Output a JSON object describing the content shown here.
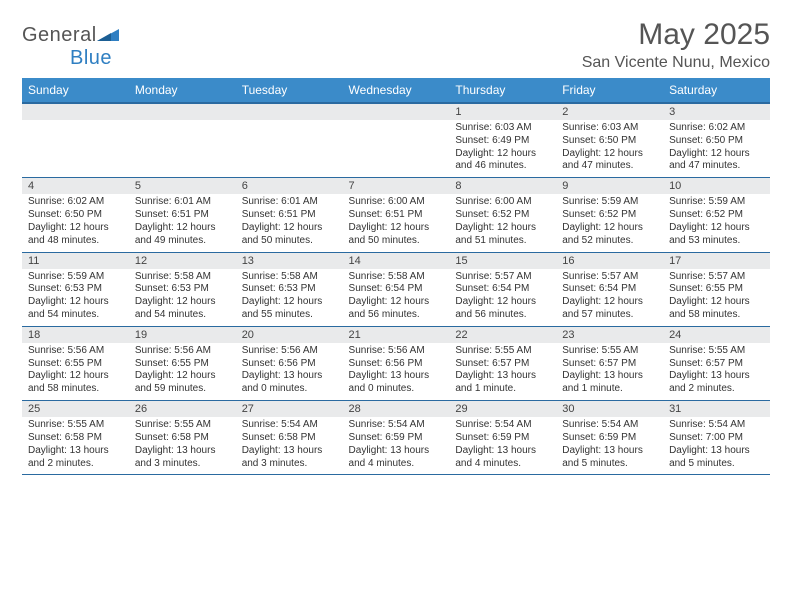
{
  "logo": {
    "text1": "General",
    "text2": "Blue"
  },
  "title": "May 2025",
  "location": "San Vicente Nunu, Mexico",
  "colors": {
    "header_bg": "#3b8bc9",
    "header_text": "#ffffff",
    "rule": "#2a6aa0",
    "daynum_bg": "#e9eaeb",
    "page_bg": "#ffffff",
    "text": "#333333",
    "logo_gray": "#555555",
    "logo_blue": "#2f7fc2"
  },
  "days_of_week": [
    "Sunday",
    "Monday",
    "Tuesday",
    "Wednesday",
    "Thursday",
    "Friday",
    "Saturday"
  ],
  "weeks": [
    [
      null,
      null,
      null,
      null,
      {
        "n": "1",
        "sr": "Sunrise: 6:03 AM",
        "ss": "Sunset: 6:49 PM",
        "d1": "Daylight: 12 hours",
        "d2": "and 46 minutes."
      },
      {
        "n": "2",
        "sr": "Sunrise: 6:03 AM",
        "ss": "Sunset: 6:50 PM",
        "d1": "Daylight: 12 hours",
        "d2": "and 47 minutes."
      },
      {
        "n": "3",
        "sr": "Sunrise: 6:02 AM",
        "ss": "Sunset: 6:50 PM",
        "d1": "Daylight: 12 hours",
        "d2": "and 47 minutes."
      }
    ],
    [
      {
        "n": "4",
        "sr": "Sunrise: 6:02 AM",
        "ss": "Sunset: 6:50 PM",
        "d1": "Daylight: 12 hours",
        "d2": "and 48 minutes."
      },
      {
        "n": "5",
        "sr": "Sunrise: 6:01 AM",
        "ss": "Sunset: 6:51 PM",
        "d1": "Daylight: 12 hours",
        "d2": "and 49 minutes."
      },
      {
        "n": "6",
        "sr": "Sunrise: 6:01 AM",
        "ss": "Sunset: 6:51 PM",
        "d1": "Daylight: 12 hours",
        "d2": "and 50 minutes."
      },
      {
        "n": "7",
        "sr": "Sunrise: 6:00 AM",
        "ss": "Sunset: 6:51 PM",
        "d1": "Daylight: 12 hours",
        "d2": "and 50 minutes."
      },
      {
        "n": "8",
        "sr": "Sunrise: 6:00 AM",
        "ss": "Sunset: 6:52 PM",
        "d1": "Daylight: 12 hours",
        "d2": "and 51 minutes."
      },
      {
        "n": "9",
        "sr": "Sunrise: 5:59 AM",
        "ss": "Sunset: 6:52 PM",
        "d1": "Daylight: 12 hours",
        "d2": "and 52 minutes."
      },
      {
        "n": "10",
        "sr": "Sunrise: 5:59 AM",
        "ss": "Sunset: 6:52 PM",
        "d1": "Daylight: 12 hours",
        "d2": "and 53 minutes."
      }
    ],
    [
      {
        "n": "11",
        "sr": "Sunrise: 5:59 AM",
        "ss": "Sunset: 6:53 PM",
        "d1": "Daylight: 12 hours",
        "d2": "and 54 minutes."
      },
      {
        "n": "12",
        "sr": "Sunrise: 5:58 AM",
        "ss": "Sunset: 6:53 PM",
        "d1": "Daylight: 12 hours",
        "d2": "and 54 minutes."
      },
      {
        "n": "13",
        "sr": "Sunrise: 5:58 AM",
        "ss": "Sunset: 6:53 PM",
        "d1": "Daylight: 12 hours",
        "d2": "and 55 minutes."
      },
      {
        "n": "14",
        "sr": "Sunrise: 5:58 AM",
        "ss": "Sunset: 6:54 PM",
        "d1": "Daylight: 12 hours",
        "d2": "and 56 minutes."
      },
      {
        "n": "15",
        "sr": "Sunrise: 5:57 AM",
        "ss": "Sunset: 6:54 PM",
        "d1": "Daylight: 12 hours",
        "d2": "and 56 minutes."
      },
      {
        "n": "16",
        "sr": "Sunrise: 5:57 AM",
        "ss": "Sunset: 6:54 PM",
        "d1": "Daylight: 12 hours",
        "d2": "and 57 minutes."
      },
      {
        "n": "17",
        "sr": "Sunrise: 5:57 AM",
        "ss": "Sunset: 6:55 PM",
        "d1": "Daylight: 12 hours",
        "d2": "and 58 minutes."
      }
    ],
    [
      {
        "n": "18",
        "sr": "Sunrise: 5:56 AM",
        "ss": "Sunset: 6:55 PM",
        "d1": "Daylight: 12 hours",
        "d2": "and 58 minutes."
      },
      {
        "n": "19",
        "sr": "Sunrise: 5:56 AM",
        "ss": "Sunset: 6:55 PM",
        "d1": "Daylight: 12 hours",
        "d2": "and 59 minutes."
      },
      {
        "n": "20",
        "sr": "Sunrise: 5:56 AM",
        "ss": "Sunset: 6:56 PM",
        "d1": "Daylight: 13 hours",
        "d2": "and 0 minutes."
      },
      {
        "n": "21",
        "sr": "Sunrise: 5:56 AM",
        "ss": "Sunset: 6:56 PM",
        "d1": "Daylight: 13 hours",
        "d2": "and 0 minutes."
      },
      {
        "n": "22",
        "sr": "Sunrise: 5:55 AM",
        "ss": "Sunset: 6:57 PM",
        "d1": "Daylight: 13 hours",
        "d2": "and 1 minute."
      },
      {
        "n": "23",
        "sr": "Sunrise: 5:55 AM",
        "ss": "Sunset: 6:57 PM",
        "d1": "Daylight: 13 hours",
        "d2": "and 1 minute."
      },
      {
        "n": "24",
        "sr": "Sunrise: 5:55 AM",
        "ss": "Sunset: 6:57 PM",
        "d1": "Daylight: 13 hours",
        "d2": "and 2 minutes."
      }
    ],
    [
      {
        "n": "25",
        "sr": "Sunrise: 5:55 AM",
        "ss": "Sunset: 6:58 PM",
        "d1": "Daylight: 13 hours",
        "d2": "and 2 minutes."
      },
      {
        "n": "26",
        "sr": "Sunrise: 5:55 AM",
        "ss": "Sunset: 6:58 PM",
        "d1": "Daylight: 13 hours",
        "d2": "and 3 minutes."
      },
      {
        "n": "27",
        "sr": "Sunrise: 5:54 AM",
        "ss": "Sunset: 6:58 PM",
        "d1": "Daylight: 13 hours",
        "d2": "and 3 minutes."
      },
      {
        "n": "28",
        "sr": "Sunrise: 5:54 AM",
        "ss": "Sunset: 6:59 PM",
        "d1": "Daylight: 13 hours",
        "d2": "and 4 minutes."
      },
      {
        "n": "29",
        "sr": "Sunrise: 5:54 AM",
        "ss": "Sunset: 6:59 PM",
        "d1": "Daylight: 13 hours",
        "d2": "and 4 minutes."
      },
      {
        "n": "30",
        "sr": "Sunrise: 5:54 AM",
        "ss": "Sunset: 6:59 PM",
        "d1": "Daylight: 13 hours",
        "d2": "and 5 minutes."
      },
      {
        "n": "31",
        "sr": "Sunrise: 5:54 AM",
        "ss": "Sunset: 7:00 PM",
        "d1": "Daylight: 13 hours",
        "d2": "and 5 minutes."
      }
    ]
  ]
}
